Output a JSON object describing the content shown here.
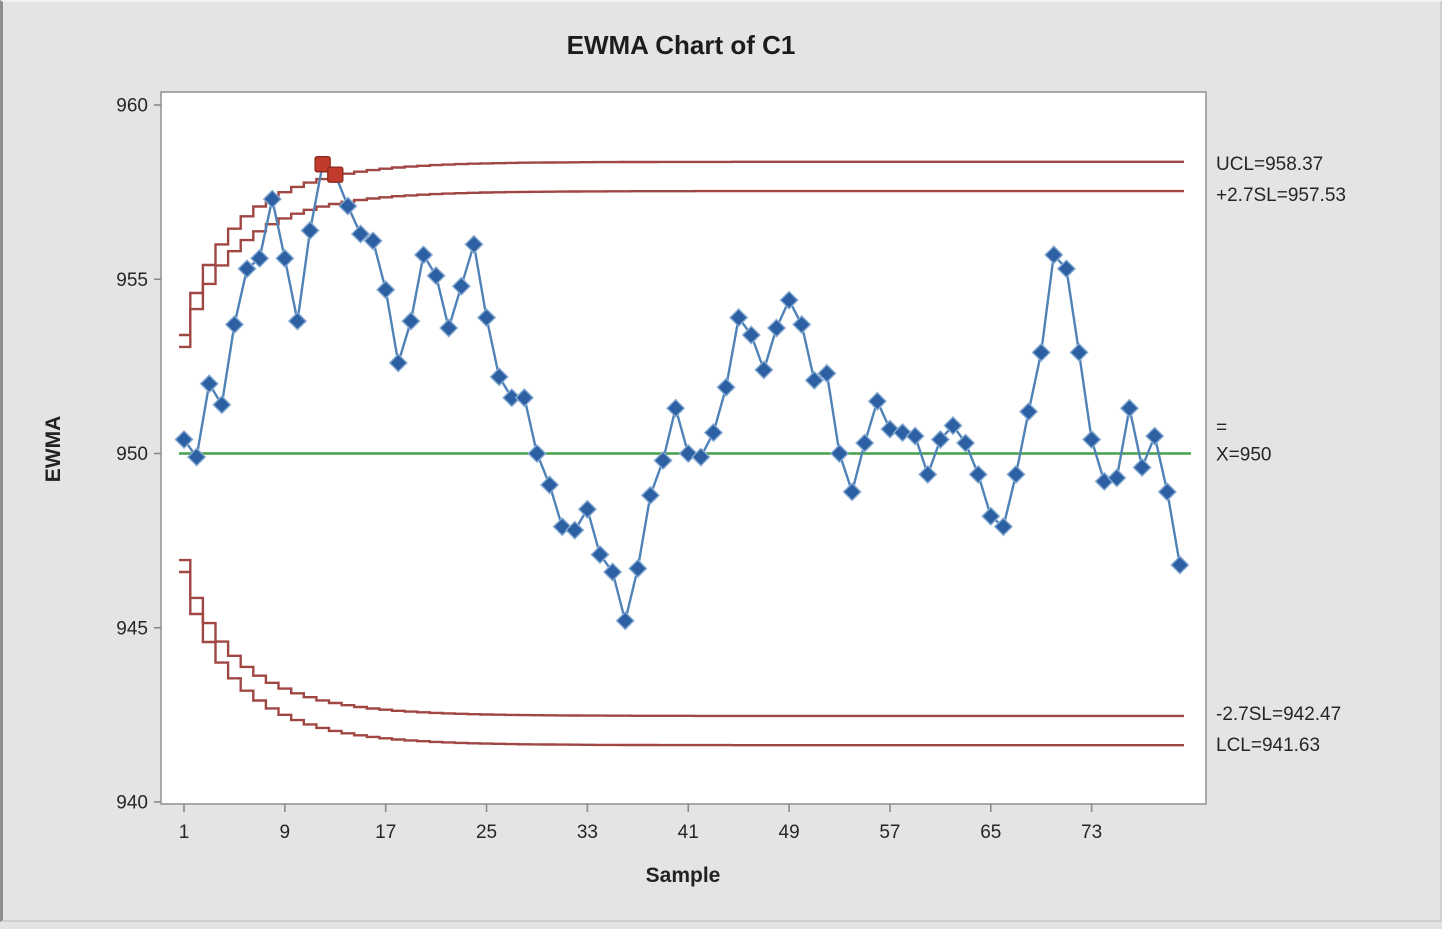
{
  "window": {
    "background": "#e4e4e4",
    "plot_background": "#ffffff",
    "frame_border": "#a8a8a8"
  },
  "chart_data": {
    "type": "line",
    "title": "EWMA Chart of C1",
    "xlabel": "Sample",
    "ylabel": "EWMA",
    "x_ticks": [
      1,
      9,
      17,
      25,
      33,
      41,
      49,
      57,
      65,
      73
    ],
    "y_ticks": [
      940,
      945,
      950,
      955,
      960
    ],
    "ylim": [
      939.6,
      960.4
    ],
    "xlim": [
      1,
      80
    ],
    "grid": "off",
    "legend": "none",
    "series": [
      {
        "name": "EWMA",
        "x_start": 1,
        "values": [
          950.4,
          949.9,
          952.0,
          951.4,
          953.7,
          955.3,
          955.6,
          957.3,
          955.6,
          953.8,
          956.4,
          958.3,
          958.0,
          957.1,
          956.3,
          956.1,
          954.7,
          952.6,
          953.8,
          955.7,
          955.1,
          953.6,
          954.8,
          956.0,
          953.9,
          952.2,
          951.6,
          951.6,
          950.0,
          949.1,
          947.9,
          947.8,
          948.4,
          947.1,
          946.6,
          945.2,
          946.7,
          948.8,
          949.8,
          951.3,
          950.0,
          949.9,
          950.6,
          951.9,
          953.9,
          953.4,
          952.4,
          953.6,
          954.4,
          953.7,
          952.1,
          952.3,
          950.0,
          948.9,
          950.3,
          951.5,
          950.7,
          950.6,
          950.5,
          949.4,
          950.4,
          950.8,
          950.3,
          949.4,
          948.2,
          947.9,
          949.4,
          951.2,
          952.9,
          955.7,
          955.3,
          952.9,
          950.4,
          949.2,
          949.3,
          951.3,
          949.6,
          950.5,
          948.9,
          946.8
        ]
      }
    ],
    "out_of_control_samples": [
      12,
      13
    ],
    "center_line": {
      "value": 950,
      "label_lines": [
        "=",
        "X=950"
      ]
    },
    "limits": [
      {
        "name": "UCL",
        "value": 958.37,
        "label": "UCL=958.37"
      },
      {
        "name": "+2.7SL",
        "value": 957.53,
        "label": "+2.7SL=957.53"
      },
      {
        "name": "-2.7SL",
        "value": 942.47,
        "label": "-2.7SL=942.47"
      },
      {
        "name": "LCL",
        "value": 941.63,
        "label": "LCL=941.63"
      }
    ],
    "limit_curve_factor": 0.835,
    "colors": {
      "marker": "#2d5fa3",
      "marker_edge": "#86abd2",
      "series_line": "#4f83b8",
      "limit_line": "#a04744",
      "center_line": "#46a14a",
      "out_of_control": "#c13a2c",
      "out_of_control_edge": "#8e2a20",
      "tick": "#8a8a8a",
      "frame": "#a8a8a8"
    }
  }
}
